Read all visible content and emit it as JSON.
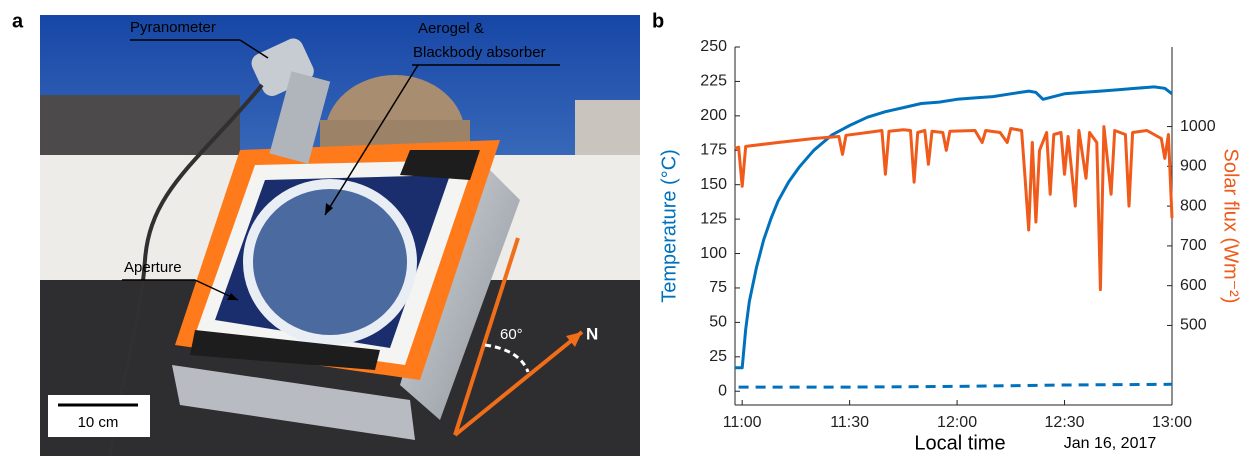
{
  "photo": {
    "label": "a",
    "annotations": {
      "pyranometer": "Pyranometer",
      "aerogel": "Aerogel &",
      "absorber": "Blackbody absorber",
      "aperture": "Aperture",
      "scale_bar": "10 cm",
      "angle": "60°",
      "north": "N"
    }
  },
  "chart_data": {
    "type": "line",
    "panel_label": "b",
    "x_label": "Local time",
    "x_note": "Jan 16, 2017",
    "y_label": "Temperature (°C)",
    "y2_label": "Solar flux (Wm⁻²)",
    "xlim": [
      "10:58",
      "13:00"
    ],
    "xticks": [
      "11:00",
      "11:30",
      "12:00",
      "12:30",
      "13:00"
    ],
    "ylim": [
      -10,
      250
    ],
    "yticks": [
      0,
      25,
      50,
      75,
      100,
      125,
      150,
      175,
      200,
      225,
      250
    ],
    "y2lim": [
      300,
      1200
    ],
    "y2ticks": [
      500,
      600,
      700,
      800,
      900,
      1000
    ],
    "series": [
      {
        "color": "#0072bd",
        "axis": "y",
        "style": "solid",
        "x": [
          "10:58",
          "10:59",
          "11:00",
          "11:01",
          "11:02",
          "11:04",
          "11:06",
          "11:08",
          "11:10",
          "11:13",
          "11:16",
          "11:20",
          "11:25",
          "11:30",
          "11:35",
          "11:40",
          "11:45",
          "11:50",
          "11:55",
          "12:00",
          "12:05",
          "12:10",
          "12:15",
          "12:20",
          "12:22",
          "12:24",
          "12:27",
          "12:30",
          "12:35",
          "12:40",
          "12:45",
          "12:50",
          "12:55",
          "12:58",
          "13:00"
        ],
        "values": [
          17,
          17,
          17,
          45,
          65,
          90,
          110,
          125,
          138,
          152,
          163,
          175,
          186,
          193,
          199,
          203,
          206,
          209,
          210,
          212,
          213,
          214,
          216,
          218,
          217,
          212,
          214,
          216,
          217,
          218,
          219,
          220,
          221,
          220,
          216
        ]
      },
      {
        "color": "#0072bd",
        "axis": "y",
        "style": "dashed",
        "x": [
          "10:59",
          "11:30",
          "12:00",
          "12:30",
          "13:00"
        ],
        "values": [
          3,
          3,
          3.5,
          4.5,
          5
        ]
      },
      {
        "color": "#f05a1a",
        "axis": "y2",
        "style": "solid",
        "x": [
          "10:58",
          "10:59",
          "11:00",
          "11:01",
          "11:10",
          "11:20",
          "11:27",
          "11:28",
          "11:29",
          "11:35",
          "11:39",
          "11:40",
          "11:41",
          "11:45",
          "11:47",
          "11:48",
          "11:49",
          "11:51",
          "11:52",
          "11:53",
          "11:56",
          "11:57",
          "11:58",
          "12:05",
          "12:07",
          "12:08",
          "12:12",
          "12:14",
          "12:15",
          "12:18",
          "12:19",
          "12:20",
          "12:21",
          "12:22",
          "12:23",
          "12:25",
          "12:26",
          "12:27",
          "12:29",
          "12:30",
          "12:31",
          "12:33",
          "12:34",
          "12:36",
          "12:37",
          "12:39",
          "12:40",
          "12:41",
          "12:43",
          "12:44",
          "12:47",
          "12:48",
          "12:49",
          "12:53",
          "12:55",
          "12:57",
          "12:58",
          "12:59",
          "13:00"
        ],
        "values": [
          945,
          948,
          850,
          950,
          960,
          970,
          975,
          930,
          978,
          985,
          990,
          880,
          988,
          992,
          990,
          860,
          985,
          990,
          905,
          988,
          985,
          940,
          988,
          990,
          960,
          990,
          985,
          960,
          995,
          990,
          870,
          740,
          960,
          760,
          940,
          985,
          830,
          980,
          985,
          880,
          975,
          800,
          990,
          870,
          985,
          960,
          590,
          1000,
          830,
          990,
          980,
          800,
          985,
          990,
          980,
          970,
          920,
          980,
          770
        ]
      }
    ]
  }
}
